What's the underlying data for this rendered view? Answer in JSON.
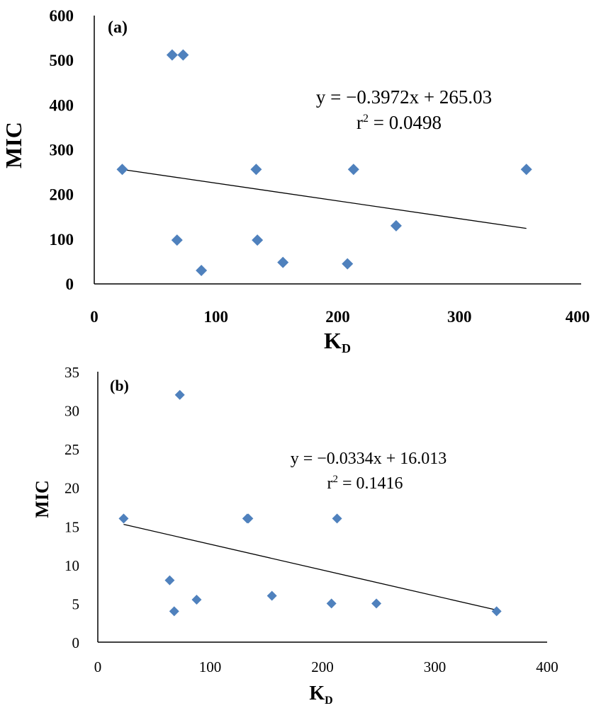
{
  "chart_data": [
    {
      "type": "scatter",
      "panel_label": "(a)",
      "xlabel": "K",
      "xlabel_sub": "D",
      "ylabel": "MIC",
      "xlim": [
        0,
        400
      ],
      "ylim": [
        0,
        600
      ],
      "xticks": [
        "0",
        "100",
        "200",
        "300",
        "400"
      ],
      "yticks": [
        "0",
        "100",
        "200",
        "300",
        "400",
        "500",
        "600"
      ],
      "x": [
        23,
        64,
        73,
        68,
        88,
        133,
        134,
        155,
        213,
        208,
        248,
        355
      ],
      "y": [
        256,
        512,
        512,
        98,
        30,
        256,
        98,
        48,
        256,
        45,
        130,
        256
      ],
      "trendline": {
        "slope": -0.3972,
        "intercept": 265.03,
        "x_range": [
          23,
          355
        ]
      },
      "equation": "y = −0.3972x + 265.03",
      "r2_prefix": "r",
      "r2_exp": "2",
      "r2_value": " = 0.0498",
      "marker_color": "#4f81bd"
    },
    {
      "type": "scatter",
      "panel_label": "(b)",
      "xlabel": "K",
      "xlabel_sub": "D",
      "ylabel": "MIC",
      "xlim": [
        0,
        400
      ],
      "ylim": [
        0,
        35
      ],
      "xticks": [
        "0",
        "100",
        "200",
        "300",
        "400"
      ],
      "yticks": [
        "0",
        "5",
        "10",
        "15",
        "20",
        "25",
        "30",
        "35"
      ],
      "x": [
        23,
        64,
        73,
        68,
        88,
        133,
        134,
        155,
        213,
        208,
        248,
        355
      ],
      "y": [
        16,
        8,
        32,
        4,
        5.5,
        16,
        16,
        6,
        16,
        5,
        5,
        4
      ],
      "trendline": {
        "slope": -0.0334,
        "intercept": 16.013,
        "x_range": [
          23,
          355
        ]
      },
      "equation": "y = −0.0334x + 16.013",
      "r2_prefix": "r",
      "r2_exp": "2",
      "r2_value": " = 0.1416",
      "marker_color": "#4f81bd"
    }
  ]
}
